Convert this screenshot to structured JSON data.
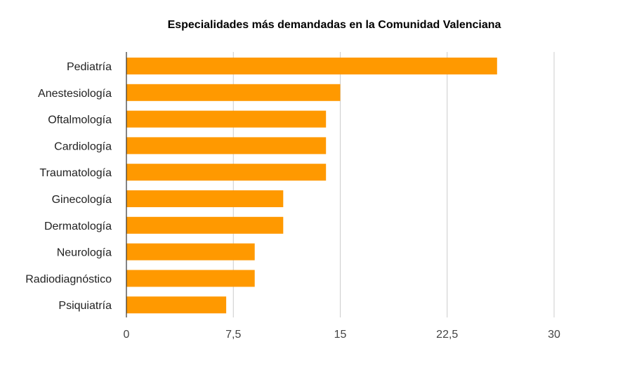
{
  "chart_data": {
    "type": "bar",
    "orientation": "horizontal",
    "title": "Especialidades más demandadas en la Comunidad Valenciana",
    "categories": [
      "Pediatría",
      "Anestesiología",
      "Oftalmología",
      "Cardiología",
      "Traumatología",
      "Ginecología",
      "Dermatología",
      "Neurología",
      "Radiodiagnóstico",
      "Psiquiatría"
    ],
    "values": [
      26,
      15,
      14,
      14,
      14,
      11,
      11,
      9,
      9,
      7
    ],
    "xlim": [
      0,
      30
    ],
    "x_ticks": [
      0,
      7.5,
      15,
      22.5,
      30
    ],
    "x_tick_labels": [
      "0",
      "7,5",
      "15",
      "22,5",
      "30"
    ],
    "grid": true,
    "legend": "none",
    "bar_color": "#ff9900",
    "grid_color": "#cccccc",
    "axis_color": "#333333"
  }
}
